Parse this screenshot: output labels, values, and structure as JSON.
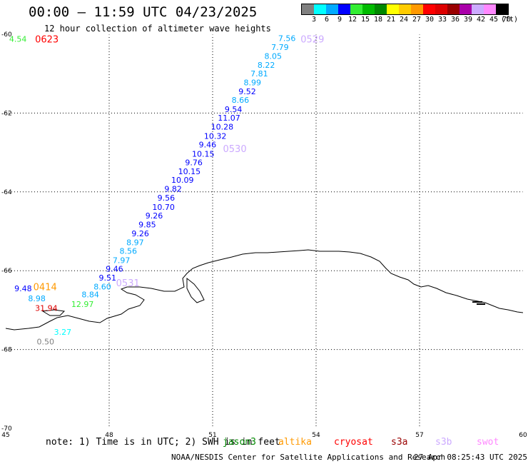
{
  "header": {
    "title": "00:00 – 11:59 UTC 04/23/2025",
    "subtitle": "12 hour collection of altimeter wave heights"
  },
  "legend": {
    "swatches": [
      "#808080",
      "#00ffff",
      "#00aaff",
      "#0000ff",
      "#33ee33",
      "#00bb00",
      "#008800",
      "#ffff00",
      "#ffcc00",
      "#ff9900",
      "#ff0000",
      "#dd0000",
      "#990000",
      "#aa00aa",
      "#ccaaff",
      "#ff88ff",
      "#000000"
    ],
    "labels": [
      "3",
      "6",
      "9",
      "12",
      "15",
      "18",
      "21",
      "24",
      "27",
      "30",
      "33",
      "36",
      "39",
      "42",
      "45",
      "70",
      "(ft)"
    ]
  },
  "map": {
    "lon_ticks": [
      "45",
      "48",
      "51",
      "54",
      "57",
      "60"
    ],
    "lat_ticks": [
      "-60",
      "-62",
      "-64",
      "-66",
      "-68",
      "-70"
    ],
    "lon_range": [
      45,
      60
    ],
    "lat_range": [
      -60,
      -70
    ],
    "grid": "dotted",
    "time_labels": [
      {
        "text": "0623",
        "lon": 45.85,
        "lat": -60.12,
        "color": "#ff0000"
      },
      {
        "text": "0529",
        "lon": 53.55,
        "lat": -60.12,
        "color": "#ccaaff"
      },
      {
        "text": "0530",
        "lon": 51.3,
        "lat": -62.9,
        "color": "#ccaaff"
      },
      {
        "text": "0531",
        "lon": 48.2,
        "lat": -66.3,
        "color": "#ccaaff"
      },
      {
        "text": "0414",
        "lon": 45.8,
        "lat": -66.4,
        "color": "#ff9900"
      }
    ],
    "wave_heights": [
      {
        "text": "4.54",
        "lon": 45.1,
        "lat": -60.12,
        "color": "#33ee33"
      },
      {
        "text": "7.56",
        "lon": 52.9,
        "lat": -60.1,
        "color": "#00aaff"
      },
      {
        "text": "7.79",
        "lon": 52.7,
        "lat": -60.33,
        "color": "#00aaff"
      },
      {
        "text": "8.05",
        "lon": 52.5,
        "lat": -60.55,
        "color": "#00aaff"
      },
      {
        "text": "8.22",
        "lon": 52.3,
        "lat": -60.78,
        "color": "#00aaff"
      },
      {
        "text": "7.81",
        "lon": 52.1,
        "lat": -61.0,
        "color": "#00aaff"
      },
      {
        "text": "8.99",
        "lon": 51.9,
        "lat": -61.22,
        "color": "#00aaff"
      },
      {
        "text": "9.52",
        "lon": 51.75,
        "lat": -61.45,
        "color": "#0000ff"
      },
      {
        "text": "8.66",
        "lon": 51.55,
        "lat": -61.67,
        "color": "#00aaff"
      },
      {
        "text": "9.54",
        "lon": 51.35,
        "lat": -61.9,
        "color": "#0000ff"
      },
      {
        "text": "11.07",
        "lon": 51.15,
        "lat": -62.12,
        "color": "#0000ff"
      },
      {
        "text": "10.28",
        "lon": 50.95,
        "lat": -62.35,
        "color": "#0000ff"
      },
      {
        "text": "10.32",
        "lon": 50.75,
        "lat": -62.58,
        "color": "#0000ff"
      },
      {
        "text": "9.46",
        "lon": 50.6,
        "lat": -62.8,
        "color": "#0000ff"
      },
      {
        "text": "10.15",
        "lon": 50.4,
        "lat": -63.03,
        "color": "#0000ff"
      },
      {
        "text": "9.76",
        "lon": 50.2,
        "lat": -63.25,
        "color": "#0000ff"
      },
      {
        "text": "10.15",
        "lon": 50.0,
        "lat": -63.48,
        "color": "#0000ff"
      },
      {
        "text": "10.09",
        "lon": 49.8,
        "lat": -63.7,
        "color": "#0000ff"
      },
      {
        "text": "9.82",
        "lon": 49.6,
        "lat": -63.92,
        "color": "#0000ff"
      },
      {
        "text": "9.56",
        "lon": 49.4,
        "lat": -64.15,
        "color": "#0000ff"
      },
      {
        "text": "10.70",
        "lon": 49.25,
        "lat": -64.38,
        "color": "#0000ff"
      },
      {
        "text": "9.26",
        "lon": 49.05,
        "lat": -64.6,
        "color": "#0000ff"
      },
      {
        "text": "9.85",
        "lon": 48.85,
        "lat": -64.83,
        "color": "#0000ff"
      },
      {
        "text": "9.26",
        "lon": 48.65,
        "lat": -65.05,
        "color": "#0000ff"
      },
      {
        "text": "8.97",
        "lon": 48.5,
        "lat": -65.28,
        "color": "#00aaff"
      },
      {
        "text": "8.56",
        "lon": 48.3,
        "lat": -65.5,
        "color": "#00aaff"
      },
      {
        "text": "7.97",
        "lon": 48.1,
        "lat": -65.73,
        "color": "#00aaff"
      },
      {
        "text": "9.46",
        "lon": 47.9,
        "lat": -65.95,
        "color": "#0000ff"
      },
      {
        "text": "9.51",
        "lon": 47.7,
        "lat": -66.18,
        "color": "#0000ff"
      },
      {
        "text": "8.60",
        "lon": 47.55,
        "lat": -66.4,
        "color": "#00aaff"
      },
      {
        "text": "9.48",
        "lon": 45.25,
        "lat": -66.45,
        "color": "#0000ff"
      },
      {
        "text": "8.84",
        "lon": 47.2,
        "lat": -66.6,
        "color": "#00aaff"
      },
      {
        "text": "8.98",
        "lon": 45.65,
        "lat": -66.7,
        "color": "#00aaff"
      },
      {
        "text": "12.97",
        "lon": 46.9,
        "lat": -66.85,
        "color": "#33ee33"
      },
      {
        "text": "31.94",
        "lon": 45.85,
        "lat": -66.95,
        "color": "#dd0000"
      },
      {
        "text": "3.27",
        "lon": 46.4,
        "lat": -67.55,
        "color": "#00ffff"
      },
      {
        "text": "0.50",
        "lon": 45.9,
        "lat": -67.8,
        "color": "#808080"
      }
    ]
  },
  "footer": {
    "note": "note: 1) Time is in UTC; 2) SWH is in feet",
    "satellites": [
      {
        "name": "jason3",
        "color": "#008800"
      },
      {
        "name": "altika",
        "color": "#ff9900"
      },
      {
        "name": "cryosat",
        "color": "#ff0000"
      },
      {
        "name": "s3a",
        "color": "#990000"
      },
      {
        "name": "s3b",
        "color": "#ccaaff"
      },
      {
        "name": "swot",
        "color": "#ff88ff"
      }
    ],
    "center": "NOAA/NESDIS Center for Satellite Applications and Research",
    "date": "27 Apr 08:25:43 UTC 2025"
  }
}
